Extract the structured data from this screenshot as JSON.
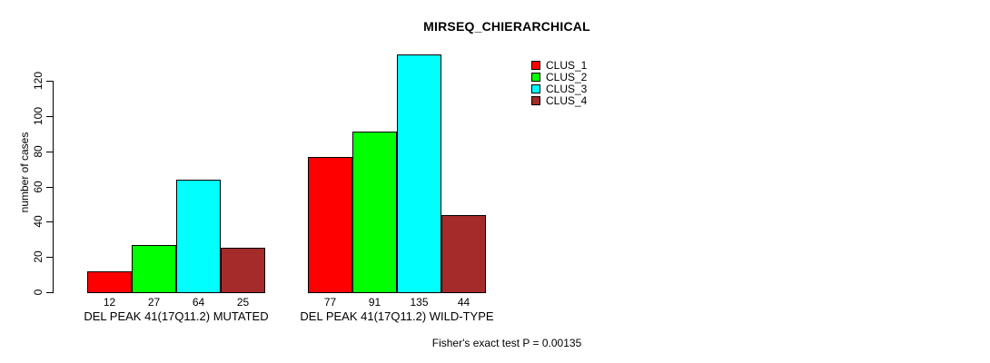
{
  "title": "MIRSEQ_CHIERARCHICAL",
  "footer": "Fisher's exact test P = 0.00135",
  "chart_data": {
    "type": "bar",
    "title": "MIRSEQ_CHIERARCHICAL",
    "xlabel": "",
    "ylabel": "number of cases",
    "ylim": [
      0,
      135
    ],
    "yticks": [
      0,
      20,
      40,
      60,
      80,
      100,
      120
    ],
    "grid": false,
    "bar_value_labels_shown": true,
    "legend_position": "top-right",
    "legend_entries": [
      "CLUS_1",
      "CLUS_2",
      "CLUS_3",
      "CLUS_4"
    ],
    "categories": [
      "DEL PEAK 41(17Q11.2) MUTATED",
      "DEL PEAK 41(17Q11.2) WILD-TYPE"
    ],
    "series": [
      {
        "name": "CLUS_1",
        "color": "#ff0000",
        "values": [
          12,
          77
        ]
      },
      {
        "name": "CLUS_2",
        "color": "#00ff00",
        "values": [
          27,
          91
        ]
      },
      {
        "name": "CLUS_3",
        "color": "#00ffff",
        "values": [
          64,
          135
        ]
      },
      {
        "name": "CLUS_4",
        "color": "#a52a2a",
        "values": [
          25,
          44
        ]
      }
    ],
    "annotation": "Fisher's exact test P = 0.00135"
  }
}
